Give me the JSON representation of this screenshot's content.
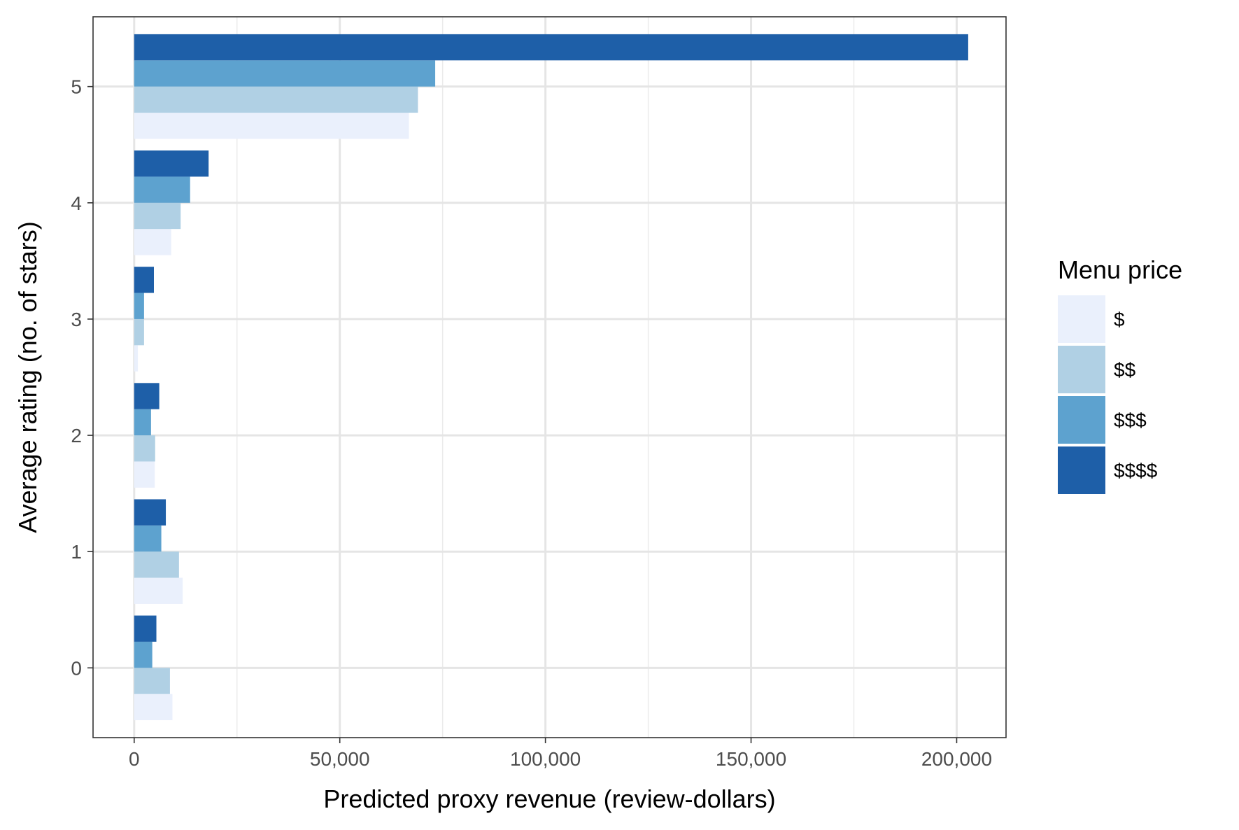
{
  "chart_data": {
    "type": "bar",
    "orientation": "horizontal",
    "title": "",
    "xlabel": "Predicted proxy revenue (review-dollars)",
    "ylabel": "Average rating (no. of stars)",
    "xlim": [
      -10000,
      212000
    ],
    "ylim": [
      -0.6,
      5.6
    ],
    "x_ticks": [
      0,
      50000,
      100000,
      150000,
      200000
    ],
    "x_tick_labels": [
      "0",
      "50,000",
      "100,000",
      "150,000",
      "200,000"
    ],
    "categories": [
      0,
      1,
      2,
      3,
      4,
      5
    ],
    "category_labels": [
      "0",
      "1",
      "2",
      "3",
      "4",
      "5"
    ],
    "grid": true,
    "legend": {
      "title": "Menu price",
      "position": "right"
    },
    "series": [
      {
        "name": "$",
        "color": "#eaf0fc",
        "values": [
          9300,
          11800,
          5000,
          900,
          9000,
          66800
        ]
      },
      {
        "name": "$$",
        "color": "#b0d0e4",
        "values": [
          8700,
          10900,
          5100,
          2400,
          11300,
          69000
        ]
      },
      {
        "name": "$$$",
        "color": "#5da2cf",
        "values": [
          4400,
          6600,
          4100,
          2400,
          13600,
          73200
        ]
      },
      {
        "name": "$$$$",
        "color": "#1e5fa8",
        "values": [
          5400,
          7700,
          6100,
          4800,
          18100,
          202800
        ]
      }
    ]
  }
}
